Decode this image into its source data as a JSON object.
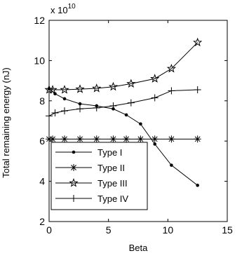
{
  "chart_data": {
    "type": "line",
    "title": "",
    "xlabel": "Beta",
    "ylabel": "Total remaining energy (nJ)",
    "y_multiplier": "x 10",
    "y_multiplier_exponent": "10",
    "xlim": [
      0,
      15
    ],
    "ylim": [
      2,
      12
    ],
    "x_ticks": [
      0,
      5,
      10,
      15
    ],
    "y_ticks": [
      2,
      4,
      6,
      8,
      10,
      12
    ],
    "grid": false,
    "legend_position": "bottom-left",
    "series": [
      {
        "name": "Type I",
        "marker": "dot",
        "x": [
          0,
          0.5,
          1.3,
          2.6,
          4,
          5.4,
          6.5,
          7.7,
          8.9,
          10.3,
          12.5
        ],
        "y": [
          8.6,
          8.35,
          8.1,
          7.85,
          7.75,
          7.6,
          7.3,
          6.85,
          5.85,
          4.8,
          3.8
        ]
      },
      {
        "name": "Type II",
        "marker": "asterisk",
        "x": [
          0,
          0.3,
          1.3,
          2.6,
          4,
          5.4,
          6.5,
          7.7,
          8.9,
          10.3,
          12.5
        ],
        "y": [
          6.1,
          6.1,
          6.1,
          6.1,
          6.1,
          6.1,
          6.1,
          6.1,
          6.1,
          6.1,
          6.1
        ]
      },
      {
        "name": "Type III",
        "marker": "star",
        "x": [
          0,
          0.3,
          1.3,
          2.6,
          4,
          5.4,
          6.9,
          8.9,
          10.3,
          12.5
        ],
        "y": [
          8.55,
          8.55,
          8.55,
          8.58,
          8.62,
          8.7,
          8.85,
          9.1,
          9.6,
          10.9
        ]
      },
      {
        "name": "Type IV",
        "marker": "plus",
        "x": [
          0,
          0.5,
          1.3,
          2.6,
          4,
          5.4,
          6.9,
          8.9,
          10.3,
          12.5
        ],
        "y": [
          7.25,
          7.4,
          7.5,
          7.6,
          7.65,
          7.75,
          7.9,
          8.15,
          8.5,
          8.55
        ]
      }
    ]
  }
}
